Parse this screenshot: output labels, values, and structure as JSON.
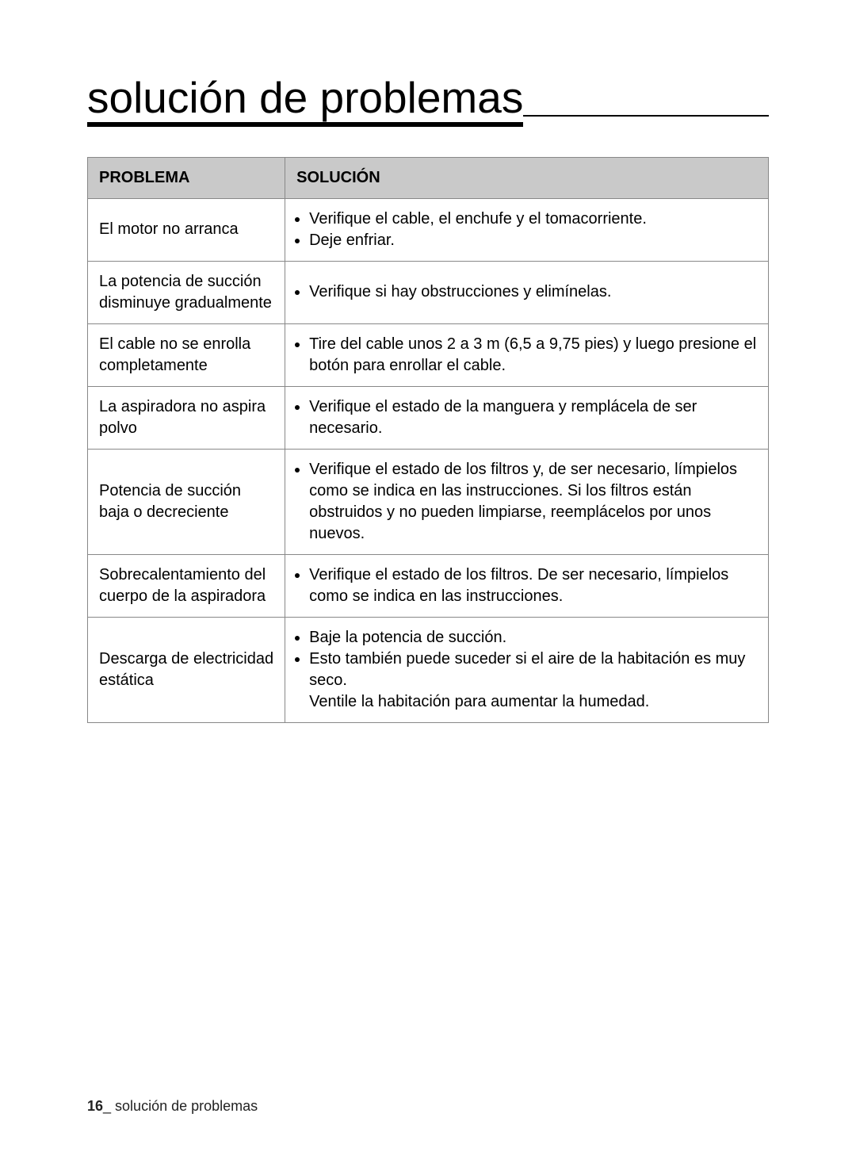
{
  "page": {
    "title": "solución de problemas",
    "page_number": "16",
    "footer_section": "solución de problemas"
  },
  "table": {
    "headers": {
      "problem": "PROBLEMA",
      "solution": "SOLUCIÓN"
    },
    "rows": [
      {
        "problem": "El motor no arranca",
        "bullets": [
          "Verifique el cable, el enchufe y el tomacorriente.",
          "Deje enfriar."
        ]
      },
      {
        "problem": "La potencia de succión disminuye gradualmente",
        "bullets": [
          "Verifique si hay obstrucciones y elimínelas."
        ]
      },
      {
        "problem": "El cable no se enrolla completamente",
        "bullets": [
          "Tire del cable unos 2 a 3 m (6,5 a 9,75 pies) y luego presione el botón para enrollar el cable."
        ]
      },
      {
        "problem": "La aspiradora no aspira polvo",
        "bullets": [
          "Verifique el estado de la manguera y remplácela de ser necesario."
        ]
      },
      {
        "problem": "Potencia de succión baja o decreciente",
        "bullets": [
          "Verifique el estado de los filtros y, de ser necesario, límpielos como se indica en las instrucciones. Si los filtros están obstruidos y no pueden limpiarse, reemplácelos por unos nuevos."
        ]
      },
      {
        "problem": "Sobrecalentamiento del cuerpo de la aspiradora",
        "bullets": [
          "Verifique el estado de los filtros. De ser necesario, límpielos como se indica en las instrucciones."
        ]
      },
      {
        "problem": "Descarga de electricidad estática",
        "bullets": [
          "Baje la potencia de succión.",
          "Esto también puede suceder si el aire de la habitación es muy seco."
        ],
        "trailing": "Ventile la habitación para aumentar la humedad."
      }
    ]
  }
}
